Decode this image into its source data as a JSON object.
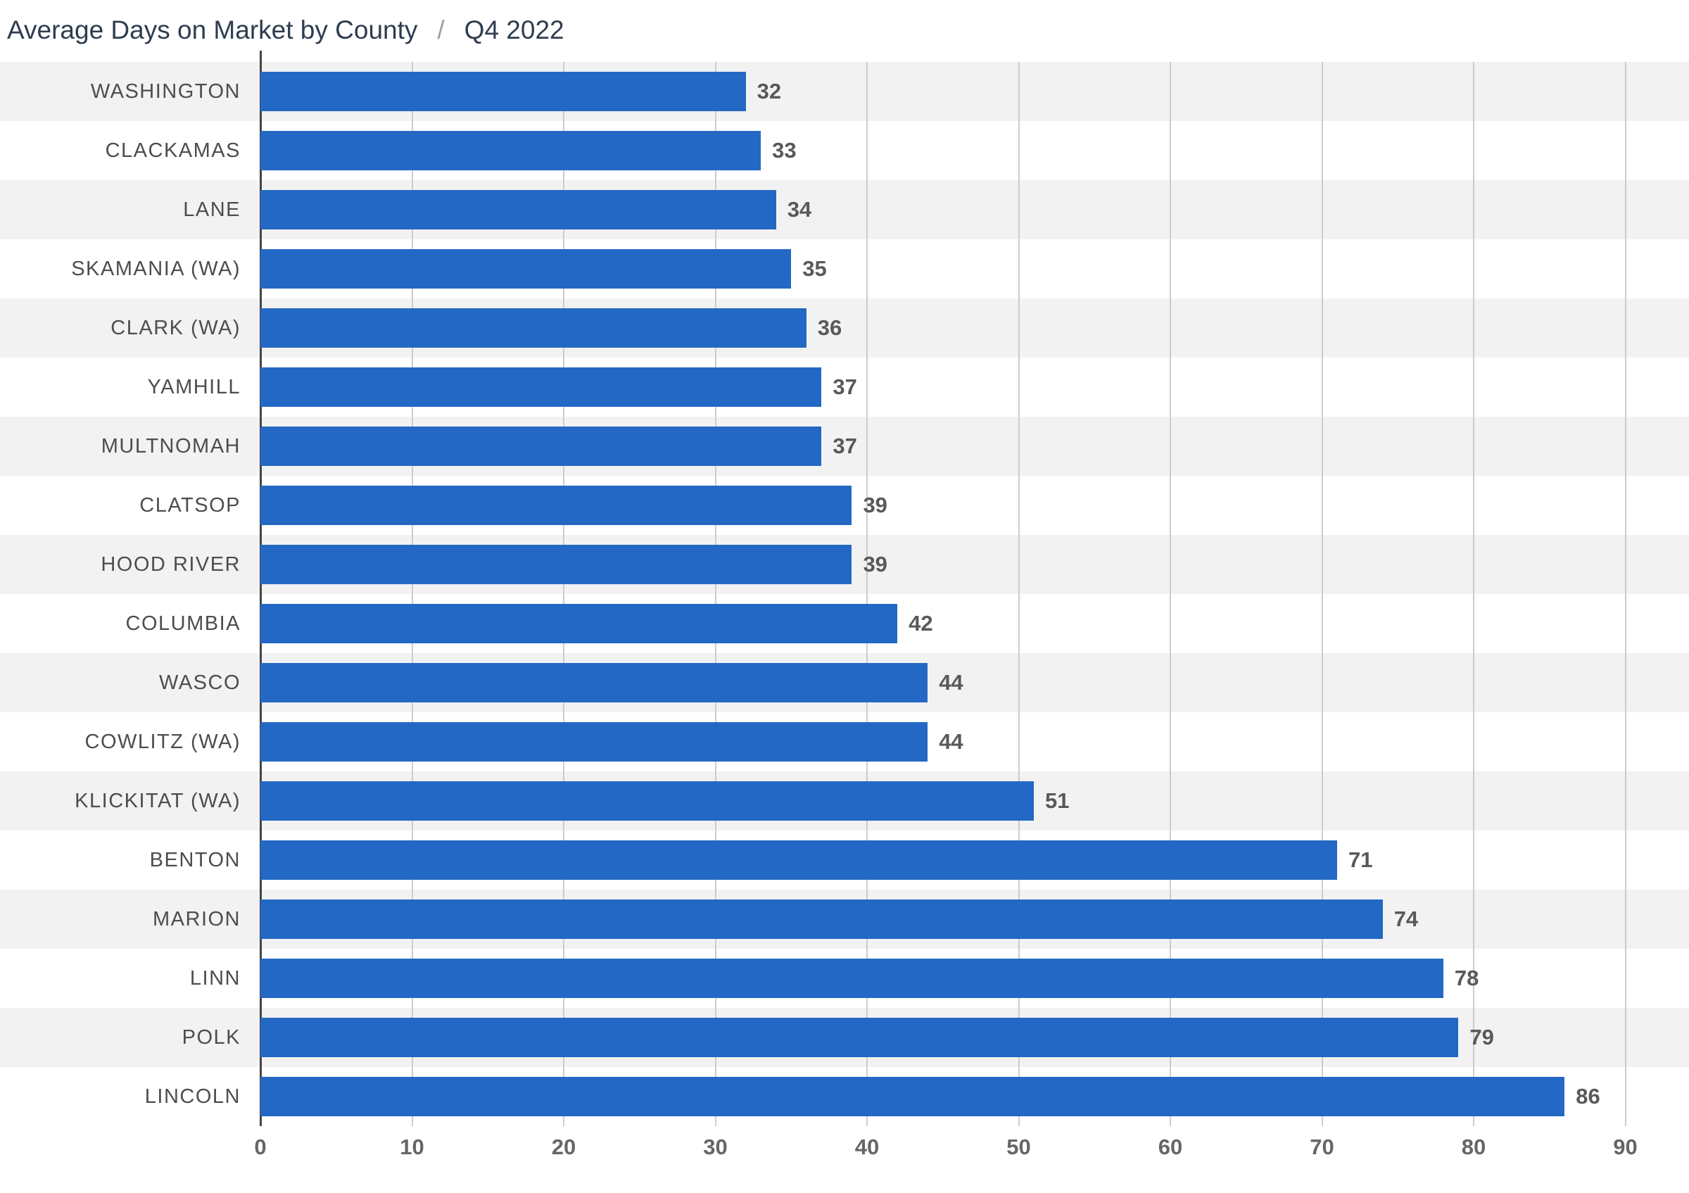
{
  "header": {
    "title": "Average Days on Market by County",
    "separator": "/",
    "period": "Q4 2022"
  },
  "chart_data": {
    "type": "bar",
    "orientation": "horizontal",
    "title": "Average Days on Market by County / Q4 2022",
    "categories": [
      "WASHINGTON",
      "CLACKAMAS",
      "LANE",
      "SKAMANIA (WA)",
      "CLARK (WA)",
      "YAMHILL",
      "MULTNOMAH",
      "CLATSOP",
      "HOOD RIVER",
      "COLUMBIA",
      "WASCO",
      "COWLITZ (WA)",
      "KLICKITAT (WA)",
      "BENTON",
      "MARION",
      "LINN",
      "POLK",
      "LINCOLN"
    ],
    "values": [
      32,
      33,
      34,
      35,
      36,
      37,
      37,
      39,
      39,
      42,
      44,
      44,
      51,
      71,
      74,
      78,
      79,
      86
    ],
    "xlabel": "",
    "ylabel": "",
    "xlim": [
      0,
      90
    ],
    "xticks": [
      0,
      10,
      20,
      30,
      40,
      50,
      60,
      70,
      80,
      90
    ],
    "grid": true,
    "legend": "none",
    "bar_color": "#2368c4",
    "stripe_colors": [
      "#f2f2f2",
      "#ffffff"
    ],
    "value_label_color": "#595959",
    "axis_color": "#444444",
    "gridline_color": "#cccccc"
  }
}
